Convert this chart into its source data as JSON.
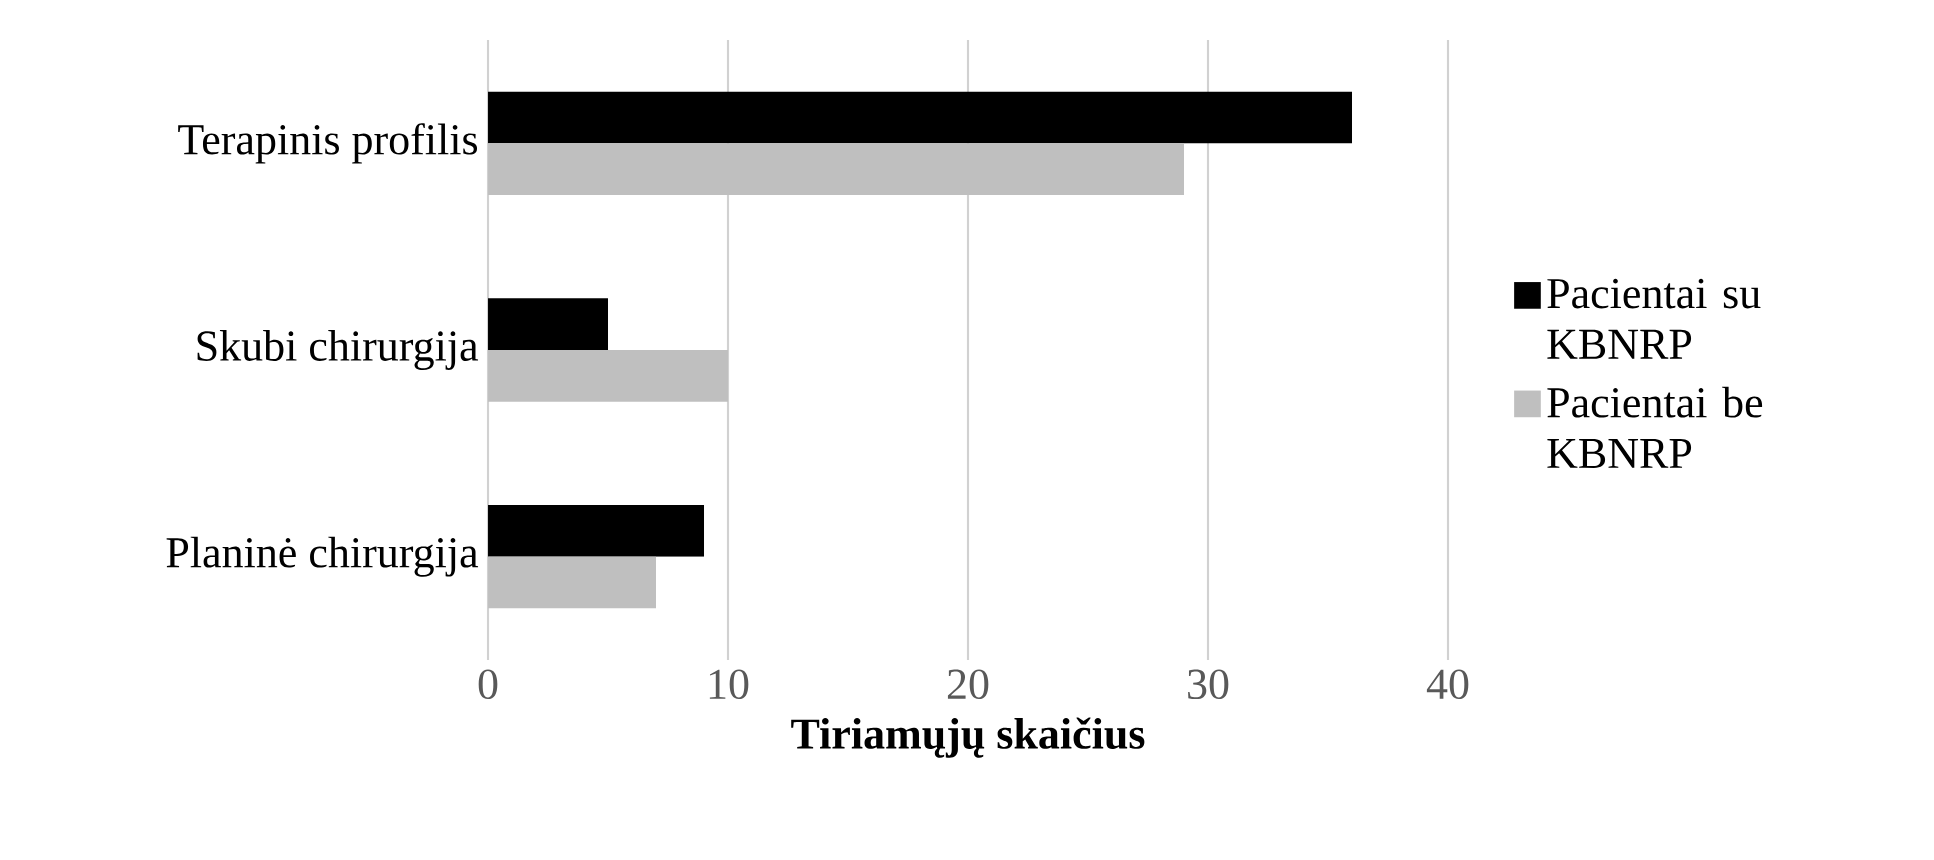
{
  "chart_data": {
    "type": "bar",
    "orientation": "horizontal",
    "xlabel": "Tiriamųjų skaičius",
    "categories": [
      "Terapinis profilis",
      "Skubi chirurgija",
      "Planinė chirurgija"
    ],
    "series": [
      {
        "name": "Pacientai su KBNRP",
        "color": "#000000",
        "values": [
          36,
          5,
          9
        ]
      },
      {
        "name": "Pacientai be KBNRP",
        "color": "#bfbfbf",
        "values": [
          29,
          10,
          7
        ]
      }
    ],
    "xlim": [
      0,
      40
    ],
    "xticks": [
      0,
      10,
      20,
      30,
      40
    ],
    "grid": "x",
    "legend": "right"
  }
}
